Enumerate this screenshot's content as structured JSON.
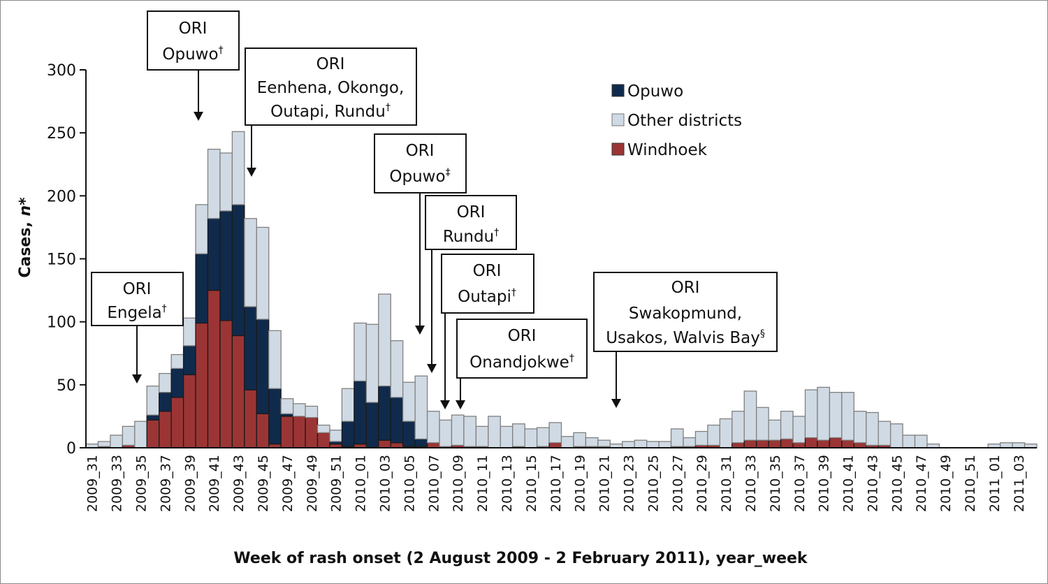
{
  "chart_data": {
    "type": "bar",
    "stacked": true,
    "title": "",
    "xlabel": "Week of rash onset (2 August 2009 - 2 February 2011), year_week",
    "ylabel": "Cases, n*",
    "ylim": [
      0,
      300
    ],
    "yticks": [
      0,
      50,
      100,
      150,
      200,
      250,
      300
    ],
    "grid": false,
    "legend_position": "top-right",
    "categories": [
      "2009_31",
      "2009_32",
      "2009_33",
      "2009_34",
      "2009_35",
      "2009_36",
      "2009_37",
      "2009_38",
      "2009_39",
      "2009_40",
      "2009_41",
      "2009_42",
      "2009_43",
      "2009_44",
      "2009_45",
      "2009_46",
      "2009_47",
      "2009_48",
      "2009_49",
      "2009_50",
      "2009_51",
      "2009_52",
      "2010_01",
      "2010_02",
      "2010_03",
      "2010_04",
      "2010_05",
      "2010_06",
      "2010_07",
      "2010_08",
      "2010_09",
      "2010_10",
      "2010_11",
      "2010_12",
      "2010_13",
      "2010_14",
      "2010_15",
      "2010_16",
      "2010_17",
      "2010_18",
      "2010_19",
      "2010_20",
      "2010_21",
      "2010_22",
      "2010_23",
      "2010_24",
      "2010_25",
      "2010_26",
      "2010_27",
      "2010_28",
      "2010_29",
      "2010_30",
      "2010_31",
      "2010_32",
      "2010_33",
      "2010_34",
      "2010_35",
      "2010_36",
      "2010_37",
      "2010_38",
      "2010_39",
      "2010_40",
      "2010_41",
      "2010_42",
      "2010_43",
      "2010_44",
      "2010_45",
      "2010_46",
      "2010_47",
      "2010_48",
      "2010_49",
      "2010_50",
      "2010_51",
      "2010_52",
      "2011_01",
      "2011_02",
      "2011_03",
      "2011_04"
    ],
    "tick_labels": [
      "2009_31",
      "2009_33",
      "2009_35",
      "2009_37",
      "2009_39",
      "2009_41",
      "2009_43",
      "2009_45",
      "2009_47",
      "2009_49",
      "2009_51",
      "2010_01",
      "2010_03",
      "2010_05",
      "2010_07",
      "2010_09",
      "2010_11",
      "2010_13",
      "2010_15",
      "2010_17",
      "2010_19",
      "2010_21",
      "2010_23",
      "2010_25",
      "2010_27",
      "2010_29",
      "2010_31",
      "2010_33",
      "2010_35",
      "2010_37",
      "2010_39",
      "2010_41",
      "2010_43",
      "2010_45",
      "2010_47",
      "2010_49",
      "2010_51",
      "2011_01",
      "2011_03"
    ],
    "series": [
      {
        "name": "Windhoek",
        "color": "#9b3535",
        "values": [
          0,
          1,
          0,
          2,
          0,
          22,
          29,
          40,
          58,
          99,
          125,
          101,
          89,
          46,
          27,
          3,
          25,
          25,
          24,
          12,
          3,
          1,
          3,
          0,
          6,
          4,
          1,
          1,
          4,
          1,
          2,
          1,
          1,
          0,
          0,
          1,
          0,
          1,
          4,
          0,
          1,
          1,
          1,
          0,
          0,
          0,
          0,
          0,
          1,
          1,
          2,
          2,
          0,
          4,
          6,
          6,
          6,
          7,
          4,
          8,
          6,
          8,
          6,
          4,
          2,
          2,
          0,
          0,
          0,
          0,
          0,
          0,
          0,
          0,
          0,
          0,
          0,
          0
        ]
      },
      {
        "name": "Opuwo",
        "color": "#102a4c",
        "values": [
          0,
          0,
          0,
          0,
          0,
          4,
          15,
          23,
          23,
          55,
          57,
          87,
          104,
          66,
          75,
          44,
          2,
          0,
          0,
          0,
          2,
          20,
          50,
          36,
          43,
          36,
          20,
          6,
          0,
          0,
          0,
          0,
          0,
          0,
          0,
          0,
          0,
          0,
          0,
          0,
          0,
          0,
          0,
          0,
          0,
          0,
          0,
          0,
          0,
          0,
          0,
          0,
          0,
          0,
          0,
          0,
          0,
          0,
          0,
          0,
          0,
          0,
          0,
          0,
          0,
          0,
          0,
          0,
          0,
          0,
          0,
          0,
          0,
          0,
          0,
          0,
          0,
          0
        ]
      },
      {
        "name": "Other districts",
        "color": "#d0dae4",
        "values": [
          3,
          4,
          10,
          15,
          21,
          23,
          15,
          11,
          22,
          39,
          55,
          46,
          58,
          70,
          73,
          46,
          12,
          10,
          9,
          6,
          9,
          26,
          46,
          62,
          73,
          45,
          31,
          50,
          25,
          21,
          24,
          24,
          16,
          25,
          17,
          18,
          15,
          15,
          16,
          9,
          11,
          7,
          5,
          3,
          5,
          6,
          5,
          5,
          14,
          7,
          11,
          16,
          23,
          25,
          39,
          26,
          16,
          22,
          21,
          38,
          42,
          36,
          38,
          25,
          26,
          19,
          19,
          10,
          10,
          3,
          0,
          0,
          0,
          0,
          3,
          4,
          4,
          3
        ]
      }
    ],
    "annotations": [
      {
        "title": "ORI",
        "text": "Engela",
        "mark": "†",
        "week": "2009_35"
      },
      {
        "title": "ORI",
        "text": "Opuwo",
        "mark": "†",
        "week": "2009_40"
      },
      {
        "title": "ORI",
        "text": "Eenhena, Okongo, Outapi, Rundu",
        "mark": "†",
        "week": "2009_44"
      },
      {
        "title": "ORI",
        "text": "Opuwo",
        "mark": "‡",
        "week": "2010_06"
      },
      {
        "title": "ORI",
        "text": "Rundu",
        "mark": "†",
        "week": "2010_07"
      },
      {
        "title": "ORI",
        "text": "Outapi",
        "mark": "†",
        "week": "2010_08"
      },
      {
        "title": "ORI",
        "text": "Onandjokwe",
        "mark": "†",
        "week": "2010_09"
      },
      {
        "title": "ORI",
        "text": "Swakopmund, Usakos, Walvis Bay",
        "mark": "§",
        "week": "2010_22"
      }
    ],
    "legend": [
      {
        "name": "Opuwo",
        "color": "#102a4c"
      },
      {
        "name": "Other districts",
        "color": "#d0dae4"
      },
      {
        "name": "Windhoek",
        "color": "#9b3535"
      }
    ]
  },
  "text": {
    "ylabel_main": "Cases, ",
    "ylabel_italic": "n",
    "ylabel_star": "*",
    "xlabel": "Week of rash onset (2 August 2009 - 2 February 2011), year_week",
    "ann": {
      "a0": {
        "l1": "ORI",
        "l2": "Engela",
        "sup": "†"
      },
      "a1": {
        "l1": "ORI",
        "l2": "Opuwo",
        "sup": "†"
      },
      "a2": {
        "l1": "ORI",
        "l2": "Eenhena, Okongo,",
        "l3": "Outapi, Rundu",
        "sup": "†"
      },
      "a3": {
        "l1": "ORI",
        "l2": "Opuwo",
        "sup": "‡"
      },
      "a4": {
        "l1": "ORI",
        "l2": "Rundu",
        "sup": "†"
      },
      "a5": {
        "l1": "ORI",
        "l2": "Outapi",
        "sup": "†"
      },
      "a6": {
        "l1": "ORI",
        "l2": "Onandjokwe",
        "sup": "†"
      },
      "a7": {
        "l1": "ORI",
        "l2": "Swakopmund,",
        "l3": "Usakos, Walvis Bay",
        "sup": "§"
      }
    },
    "legend": [
      "Opuwo",
      "Other districts",
      "Windhoek"
    ]
  }
}
